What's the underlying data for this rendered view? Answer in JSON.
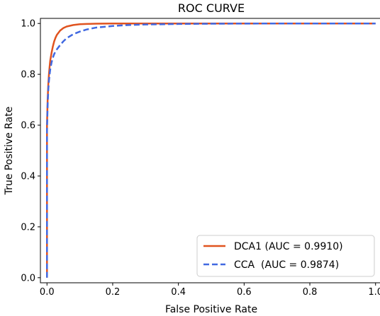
{
  "chart_data": {
    "type": "line",
    "title": "ROC CURVE",
    "xlabel": "False Positive Rate",
    "ylabel": "True Positive Rate",
    "xlim": [
      -0.02,
      1.02
    ],
    "ylim": [
      -0.02,
      1.02
    ],
    "xticks": [
      0.0,
      0.2,
      0.4,
      0.6,
      0.8,
      1.0
    ],
    "xtick_labels": [
      "0.0",
      "0.2",
      "0.4",
      "0.6",
      "0.8",
      "1.0"
    ],
    "yticks": [
      0.0,
      0.2,
      0.4,
      0.6,
      0.8,
      1.0
    ],
    "ytick_labels": [
      "0.0",
      "0.2",
      "0.4",
      "0.6",
      "0.8",
      "1.0"
    ],
    "grid": false,
    "legend_position": "lower-right",
    "series": [
      {
        "name": "DCA1 (AUC = 0.9910)",
        "color": "#e0531f",
        "style": "solid",
        "x": [
          0.0,
          0.0,
          0.002,
          0.004,
          0.006,
          0.008,
          0.01,
          0.014,
          0.018,
          0.022,
          0.026,
          0.03,
          0.04,
          0.05,
          0.06,
          0.08,
          0.1,
          0.12,
          0.15,
          0.2,
          0.3,
          0.5,
          0.7,
          1.0
        ],
        "y": [
          0.0,
          0.6,
          0.7,
          0.76,
          0.8,
          0.83,
          0.855,
          0.885,
          0.91,
          0.93,
          0.944,
          0.955,
          0.972,
          0.982,
          0.988,
          0.994,
          0.997,
          0.998,
          0.999,
          1.0,
          1.0,
          1.0,
          1.0,
          1.0
        ]
      },
      {
        "name": "CCA  (AUC = 0.9874)",
        "color": "#4169e1",
        "style": "dashed",
        "x": [
          0.0,
          0.0,
          0.002,
          0.004,
          0.006,
          0.008,
          0.01,
          0.014,
          0.018,
          0.022,
          0.026,
          0.03,
          0.04,
          0.05,
          0.06,
          0.08,
          0.1,
          0.12,
          0.15,
          0.2,
          0.25,
          0.3,
          0.4,
          0.5,
          0.7,
          1.0
        ],
        "y": [
          0.0,
          0.58,
          0.68,
          0.74,
          0.775,
          0.8,
          0.82,
          0.847,
          0.866,
          0.88,
          0.89,
          0.898,
          0.915,
          0.93,
          0.942,
          0.958,
          0.968,
          0.976,
          0.984,
          0.99,
          0.994,
          0.996,
          0.998,
          0.999,
          1.0,
          1.0
        ]
      }
    ]
  }
}
